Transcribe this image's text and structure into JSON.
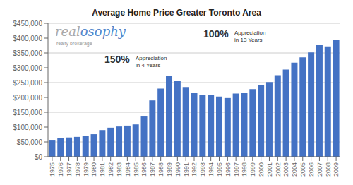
{
  "chart_data": {
    "type": "bar",
    "title": "Average Home Price Greater Toronto Area",
    "categories": [
      "1975",
      "1976",
      "1977",
      "1978",
      "1979",
      "1980",
      "1981",
      "1982",
      "1983",
      "1984",
      "1985",
      "1986",
      "1987",
      "1988",
      "1989",
      "1990",
      "1991",
      "1992",
      "1993",
      "1994",
      "1995",
      "1996",
      "1997",
      "1998",
      "1999",
      "2000",
      "2001",
      "2002",
      "2003",
      "2004",
      "2005",
      "2006",
      "2007",
      "2008",
      "2009"
    ],
    "values": [
      57000,
      62000,
      65000,
      67000,
      70000,
      76000,
      90000,
      98000,
      102000,
      105000,
      109000,
      138000,
      190000,
      230000,
      274000,
      255000,
      235000,
      215000,
      208000,
      207000,
      203000,
      198000,
      213000,
      216000,
      228000,
      243000,
      252000,
      275000,
      294000,
      317000,
      335000,
      352000,
      376000,
      372000,
      395000
    ],
    "color": "#4472c4",
    "ylim": [
      0,
      450000
    ],
    "yticks": [
      {
        "value": 0,
        "label": "$0"
      },
      {
        "value": 50000,
        "label": "$50,000"
      },
      {
        "value": 100000,
        "label": "$100,000"
      },
      {
        "value": 150000,
        "label": "$150,000"
      },
      {
        "value": 200000,
        "label": "$200,000"
      },
      {
        "value": 250000,
        "label": "$250,000"
      },
      {
        "value": 300000,
        "label": "$300,000"
      },
      {
        "value": 350000,
        "label": "$350,000"
      },
      {
        "value": 400000,
        "label": "$400,000"
      },
      {
        "value": 450000,
        "label": "$450,000"
      }
    ],
    "grid": true,
    "annotations": [
      "150%",
      "Appreciation\nin 4 Years",
      "100%",
      "Appreciation\nin 13 Years",
      "real",
      "osophy",
      "realty brokerage"
    ]
  }
}
